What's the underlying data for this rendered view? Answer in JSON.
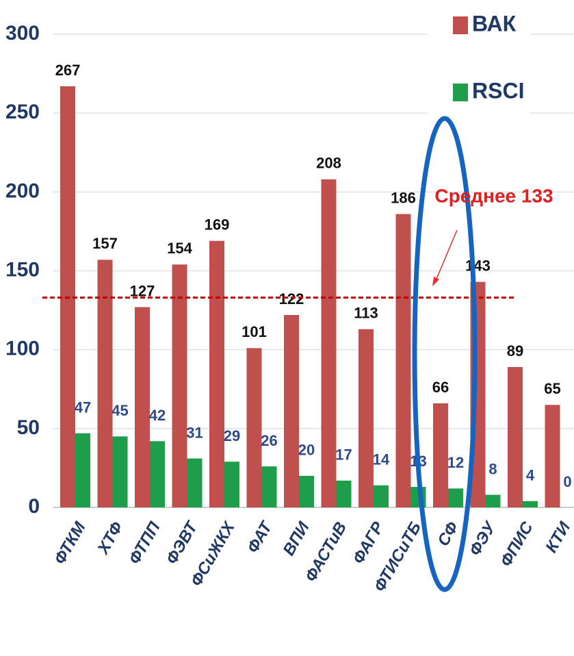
{
  "chart_data": {
    "type": "bar",
    "categories": [
      "ФТКМ",
      "ХТФ",
      "ФТПП",
      "ФЭВТ",
      "ФСиЖКХ",
      "ФАТ",
      "ВПИ",
      "ФАСТиВ",
      "ФАГР",
      "ФТИСиТБ",
      "СФ",
      "ФЭУ",
      "ФПИС",
      "КТИ"
    ],
    "series": [
      {
        "name": "ВАК",
        "color": "#c0504d",
        "values": [
          267,
          157,
          127,
          154,
          169,
          101,
          122,
          208,
          113,
          186,
          66,
          143,
          89,
          65
        ]
      },
      {
        "name": "RSCI",
        "color": "#1e9e4a",
        "values": [
          47,
          45,
          42,
          31,
          29,
          26,
          20,
          17,
          14,
          13,
          12,
          8,
          4,
          0
        ]
      }
    ],
    "annotation": "Среднее 133",
    "mean_line": 133,
    "mean_color": "#c00000",
    "ylim": [
      0,
      300
    ],
    "yticks": [
      0,
      50,
      100,
      150,
      200,
      250,
      300
    ],
    "grid": true
  }
}
